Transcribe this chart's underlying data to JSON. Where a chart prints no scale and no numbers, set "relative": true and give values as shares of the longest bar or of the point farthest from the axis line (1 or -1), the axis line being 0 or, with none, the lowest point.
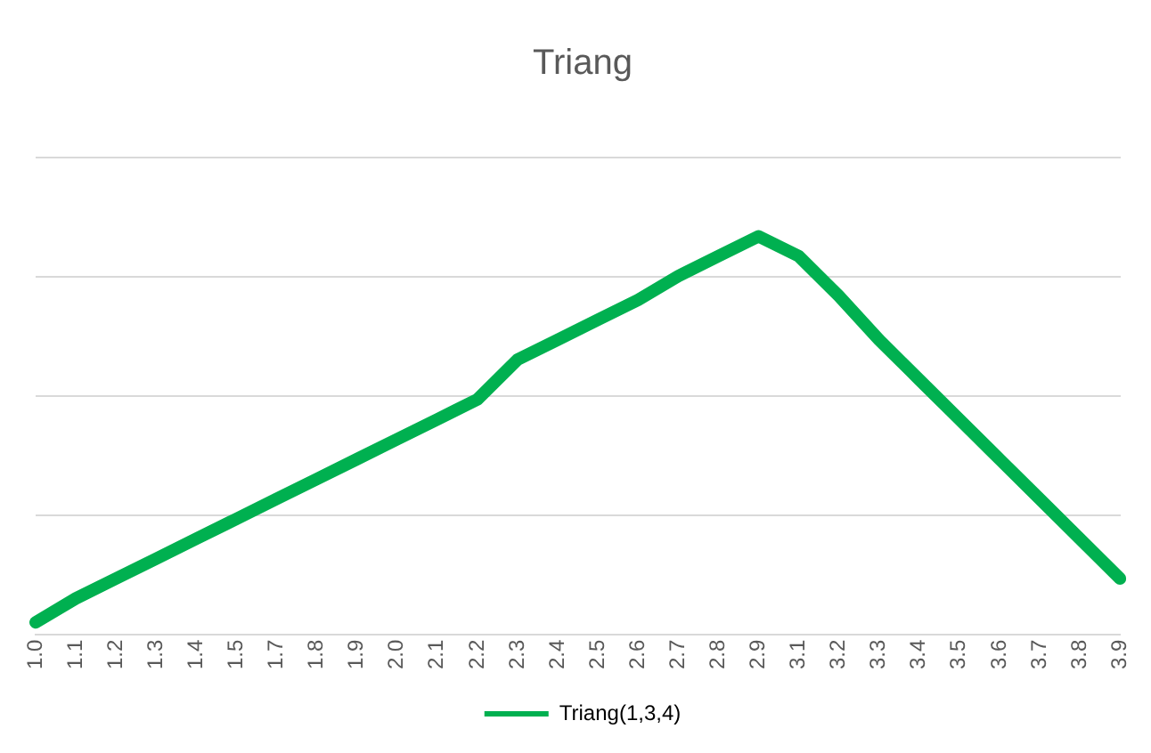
{
  "chart_data": {
    "type": "line",
    "title": "Triang",
    "relative": true,
    "legend": "bottom",
    "marker": "none",
    "categories": [
      "1.0",
      "1.1",
      "1.2",
      "1.3",
      "1.4",
      "1.5",
      "1.7",
      "1.8",
      "1.9",
      "2.0",
      "2.1",
      "2.2",
      "2.3",
      "2.4",
      "2.5",
      "2.6",
      "2.7",
      "2.8",
      "2.9",
      "3.1",
      "3.2",
      "3.3",
      "3.4",
      "3.5",
      "3.6",
      "3.7",
      "3.8",
      "3.9"
    ],
    "series": [
      {
        "name": "Triang(1,3,4)",
        "color": "#00b050",
        "values": [
          0.03,
          0.09,
          0.14,
          0.19,
          0.24,
          0.29,
          0.34,
          0.39,
          0.44,
          0.49,
          0.54,
          0.59,
          0.69,
          0.74,
          0.79,
          0.84,
          0.9,
          0.95,
          1.0,
          0.95,
          0.85,
          0.74,
          0.64,
          0.54,
          0.44,
          0.34,
          0.24,
          0.14
        ]
      }
    ]
  }
}
